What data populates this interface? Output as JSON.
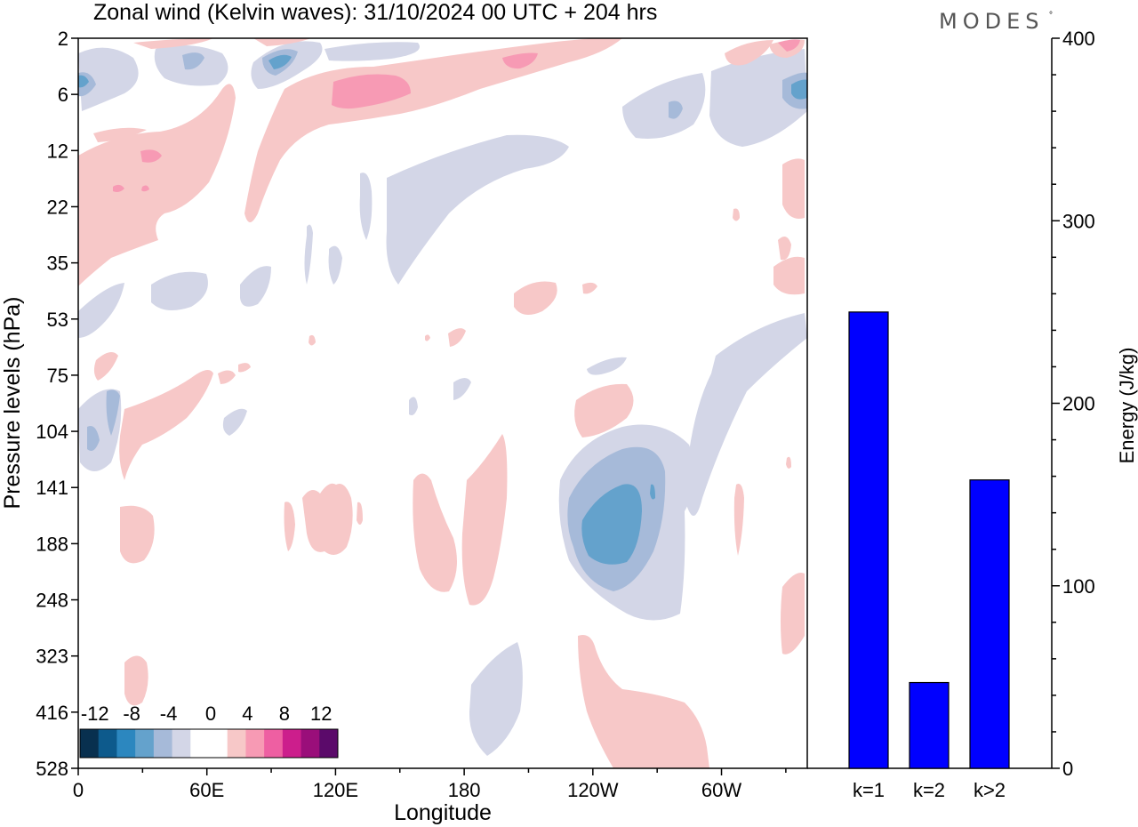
{
  "header": {
    "title": "Zonal wind (Kelvin waves):  31/10/2024  00 UTC  + 204 hrs",
    "brand": "MODES",
    "brand_mark": "°"
  },
  "chart_data": [
    {
      "type": "heatmap",
      "title": "Zonal wind (Kelvin waves):  31/10/2024  00 UTC  + 204 hrs",
      "xlabel": "Longitude",
      "ylabel": "Pressure levels (hPa)",
      "x_ticks": [
        "0",
        "60E",
        "120E",
        "180",
        "120W",
        "60W"
      ],
      "y_ticks": [
        "2",
        "6",
        "12",
        "22",
        "35",
        "53",
        "75",
        "104",
        "141",
        "188",
        "248",
        "323",
        "416",
        "528"
      ],
      "colorbar": {
        "labels": [
          "-12",
          "-8",
          "-4",
          "0",
          "4",
          "8",
          "12"
        ],
        "colors": [
          "#08304f",
          "#0d5a8c",
          "#2c87bf",
          "#64a2cc",
          "#a6bad9",
          "#d3d6e7",
          "#ffffff",
          "#ffffff",
          "#f7c8c8",
          "#f79ab4",
          "#ee5fa2",
          "#cc1e8c",
          "#9a0e7a",
          "#5b0a6a"
        ]
      }
    },
    {
      "type": "bar",
      "categories": [
        "k=1",
        "k=2",
        "k>2"
      ],
      "values": [
        250,
        47,
        158
      ],
      "ylabel": "Energy (J/kg)",
      "ylim": [
        0,
        400
      ],
      "y_ticks": [
        "0",
        "100",
        "200",
        "300",
        "400"
      ],
      "bar_color": "#0000ff"
    }
  ]
}
